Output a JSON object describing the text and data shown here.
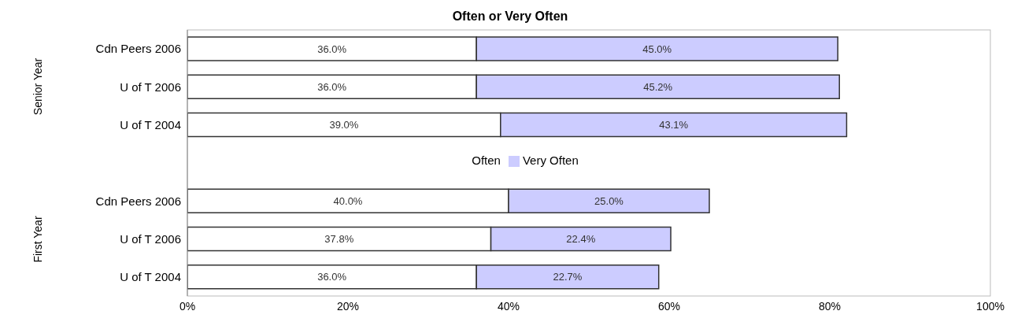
{
  "chart_data": {
    "type": "bar",
    "orientation": "horizontal",
    "stacked": true,
    "title": "Often or Very Often",
    "categories": [
      "Cdn Peers 2006",
      "U of T 2006",
      "U of T 2004",
      null,
      "Cdn Peers 2006",
      "U of T 2006",
      "U of T 2004"
    ],
    "series": [
      {
        "name": "Often",
        "color": "#ffffff",
        "values": [
          36.0,
          36.0,
          39.0,
          null,
          40.0,
          37.8,
          36.0
        ],
        "value_labels": [
          "36.0%",
          "36.0%",
          "39.0%",
          null,
          "40.0%",
          "37.8%",
          "36.0%"
        ]
      },
      {
        "name": "Very Often",
        "color": "#ccccff",
        "values": [
          45.0,
          45.2,
          43.1,
          null,
          25.0,
          22.4,
          22.7
        ],
        "value_labels": [
          "45.0%",
          "45.2%",
          "43.1%",
          null,
          "25.0%",
          "22.4%",
          "22.7%"
        ]
      }
    ],
    "xlim": [
      0,
      100
    ],
    "xticks": [
      {
        "value": 0,
        "label": "0%"
      },
      {
        "value": 20,
        "label": "20%"
      },
      {
        "value": 40,
        "label": "40%"
      },
      {
        "value": 60,
        "label": "60%"
      },
      {
        "value": 80,
        "label": "80%"
      },
      {
        "value": 100,
        "label": "100%"
      }
    ],
    "legend": "center",
    "annotations": [
      "Senior Year",
      "First Year"
    ]
  }
}
